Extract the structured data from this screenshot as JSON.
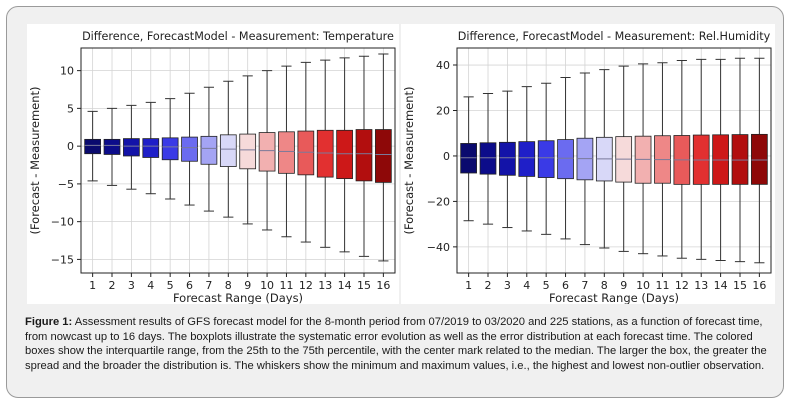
{
  "figure": {
    "label": "Figure 1:",
    "caption": "Assessment results of GFS forecast model for the 8-month period from 07/2019 to 03/2020 and 225 stations, as a function of forecast time, from nowcast up to 16 days. The boxplots illustrate the systematic error evolution as well as the error distribution at each forecast time. The colored boxes show the interquartile range, from the 25th to the 75th percentile, with the center mark related to the median. The larger the box, the greater the spread and the broader the distribution is. The whiskers show the minimum and maximum values, i.e., the highest and lowest non-outlier observation."
  },
  "chart_data": [
    {
      "type": "box",
      "title": "Difference, ForecastModel - Measurement: Temperature",
      "xlabel": "Forecast Range (Days)",
      "ylabel": "(Forecast - Measurement)",
      "categories": [
        "1",
        "2",
        "3",
        "4",
        "5",
        "6",
        "7",
        "8",
        "9",
        "10",
        "11",
        "12",
        "13",
        "14",
        "15",
        "16"
      ],
      "yticks": [
        10,
        5,
        0,
        -5,
        -10,
        -15
      ],
      "ylim": [
        -16.8,
        13.0
      ],
      "grid": true,
      "min": [
        -4.6,
        -5.2,
        -5.7,
        -6.3,
        -7.0,
        -7.8,
        -8.6,
        -9.4,
        -10.3,
        -11.1,
        -12.0,
        -12.7,
        -13.4,
        -14.0,
        -14.6,
        -15.2
      ],
      "q1": [
        -1.0,
        -1.1,
        -1.3,
        -1.5,
        -1.8,
        -2.0,
        -2.4,
        -2.7,
        -3.0,
        -3.3,
        -3.6,
        -3.8,
        -4.1,
        -4.3,
        -4.6,
        -4.8
      ],
      "median": [
        0.1,
        0.1,
        0.0,
        0.0,
        -0.1,
        -0.2,
        -0.3,
        -0.4,
        -0.5,
        -0.6,
        -0.7,
        -0.8,
        -0.9,
        -1.0,
        -1.0,
        -1.1
      ],
      "q3": [
        0.9,
        0.9,
        1.0,
        1.0,
        1.1,
        1.2,
        1.3,
        1.5,
        1.6,
        1.8,
        1.9,
        2.0,
        2.1,
        2.1,
        2.2,
        2.2
      ],
      "max": [
        4.6,
        5.0,
        5.4,
        5.8,
        6.3,
        7.0,
        7.8,
        8.6,
        9.3,
        10.0,
        10.6,
        11.1,
        11.4,
        11.7,
        11.9,
        12.2
      ],
      "colors": [
        "#0a0a6e",
        "#0c0c8a",
        "#1313a8",
        "#1f1fc8",
        "#3a3ae6",
        "#6b6bf0",
        "#a4a4f4",
        "#d8d8f8",
        "#f6dada",
        "#f2b0b0",
        "#ee8787",
        "#e85a5a",
        "#e23030",
        "#cd1818",
        "#b20e0e",
        "#8e0808"
      ]
    },
    {
      "type": "box",
      "title": "Difference, ForecastModel - Measurement: Rel.Humidity",
      "xlabel": "Forecast Range (Days)",
      "ylabel": "(Forecast - Measurement)",
      "categories": [
        "1",
        "2",
        "3",
        "4",
        "5",
        "6",
        "7",
        "8",
        "9",
        "10",
        "11",
        "12",
        "13",
        "14",
        "15",
        "16"
      ],
      "yticks": [
        40,
        20,
        0,
        -20,
        -40
      ],
      "ylim": [
        -51.5,
        47.5
      ],
      "grid": true,
      "min": [
        -28.5,
        -30.0,
        -31.5,
        -33.0,
        -34.5,
        -36.5,
        -39.0,
        -40.5,
        -42.0,
        -43.0,
        -44.0,
        -45.0,
        -45.5,
        -46.0,
        -46.5,
        -47.0
      ],
      "q1": [
        -7.5,
        -8.0,
        -8.5,
        -9.0,
        -9.5,
        -10.0,
        -10.5,
        -11.0,
        -11.5,
        -12.0,
        -12.0,
        -12.5,
        -12.5,
        -12.5,
        -12.5,
        -12.5
      ],
      "median": [
        -0.8,
        -0.8,
        -0.8,
        -0.8,
        -0.8,
        -1.0,
        -1.2,
        -1.3,
        -1.4,
        -1.5,
        -1.6,
        -1.7,
        -1.8,
        -1.8,
        -1.8,
        -1.8
      ],
      "q3": [
        5.5,
        5.8,
        6.0,
        6.3,
        6.7,
        7.2,
        7.8,
        8.2,
        8.5,
        8.7,
        8.9,
        9.0,
        9.2,
        9.3,
        9.4,
        9.5
      ],
      "max": [
        26.0,
        27.5,
        28.5,
        30.5,
        32.0,
        34.5,
        36.5,
        38.0,
        39.5,
        40.5,
        41.0,
        42.0,
        42.5,
        42.5,
        43.0,
        43.0
      ],
      "colors": [
        "#0a0a6e",
        "#0c0c8a",
        "#1313a8",
        "#1f1fc8",
        "#3a3ae6",
        "#6b6bf0",
        "#a4a4f4",
        "#d8d8f8",
        "#f6dada",
        "#f2b0b0",
        "#ee8787",
        "#e85a5a",
        "#e23030",
        "#cd1818",
        "#b20e0e",
        "#8e0808"
      ]
    }
  ]
}
